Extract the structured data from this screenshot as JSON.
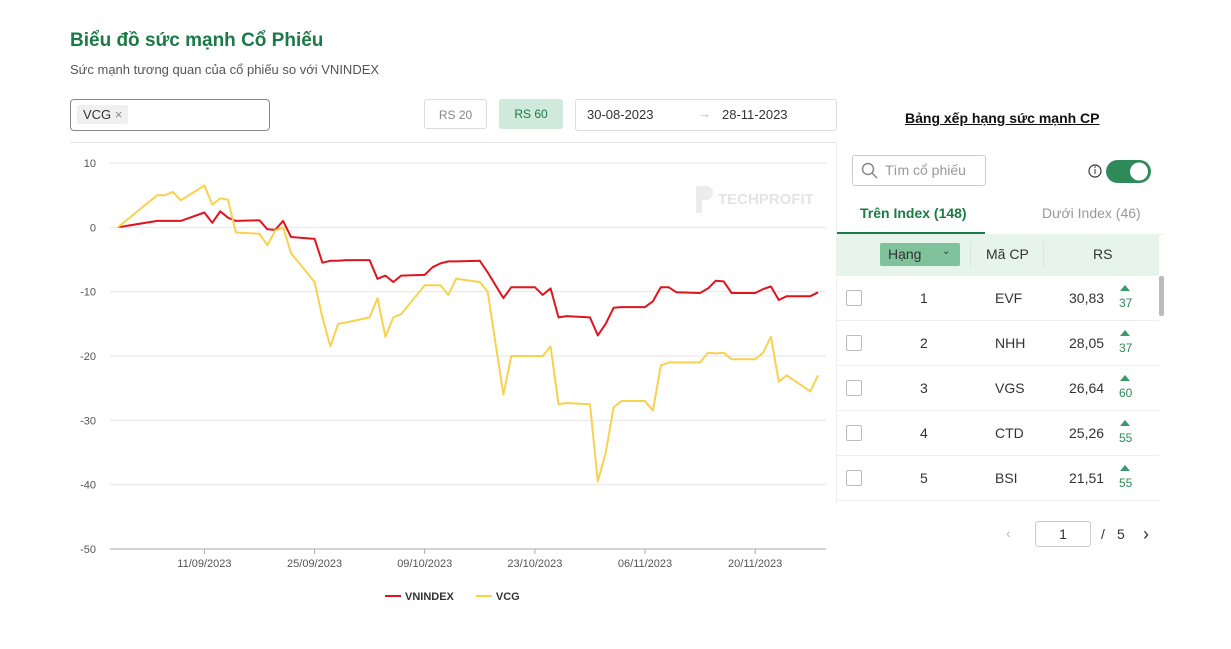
{
  "header": {
    "title": "Biểu đồ sức mạnh Cổ Phiếu",
    "subtitle": "Sức mạnh tương quan của cổ phiếu so với VNINDEX"
  },
  "controls": {
    "tag": "VCG",
    "buttons": [
      "RS 20",
      "RS 60"
    ],
    "date_from": "30-08-2023",
    "date_to": "28-11-2023"
  },
  "chart_data": {
    "type": "line",
    "watermark": "TECHPROFIT",
    "x": [
      "31/08/2023",
      "05/09/2023",
      "06/09/2023",
      "07/09/2023",
      "08/09/2023",
      "11/09/2023",
      "12/09/2023",
      "13/09/2023",
      "14/09/2023",
      "15/09/2023",
      "18/09/2023",
      "19/09/2023",
      "20/09/2023",
      "21/09/2023",
      "22/09/2023",
      "25/09/2023",
      "26/09/2023",
      "27/09/2023",
      "28/09/2023",
      "29/09/2023",
      "02/10/2023",
      "03/10/2023",
      "04/10/2023",
      "05/10/2023",
      "06/10/2023",
      "09/10/2023",
      "10/10/2023",
      "11/10/2023",
      "12/10/2023",
      "13/10/2023",
      "16/10/2023",
      "17/10/2023",
      "18/10/2023",
      "19/10/2023",
      "20/10/2023",
      "23/10/2023",
      "24/10/2023",
      "25/10/2023",
      "26/10/2023",
      "27/10/2023",
      "30/10/2023",
      "31/10/2023",
      "01/11/2023",
      "02/11/2023",
      "03/11/2023",
      "06/11/2023",
      "07/11/2023",
      "08/11/2023",
      "09/11/2023",
      "10/11/2023",
      "13/11/2023",
      "14/11/2023",
      "15/11/2023",
      "16/11/2023",
      "17/11/2023",
      "20/11/2023",
      "21/11/2023",
      "22/11/2023",
      "23/11/2023",
      "24/11/2023",
      "27/11/2023",
      "28/11/2023"
    ],
    "series": [
      {
        "name": "VNINDEX",
        "color": "#e0141e",
        "values": [
          0,
          1,
          1,
          1,
          1,
          2.3,
          0.7,
          2.5,
          1.5,
          1,
          1.1,
          -0.3,
          -0.4,
          1,
          -1.5,
          -1.8,
          -5.5,
          -5.2,
          -5.2,
          -5.1,
          -5.1,
          -8,
          -7.5,
          -8.5,
          -7.5,
          -7.4,
          -6.2,
          -5.6,
          -5.3,
          -5.3,
          -5.2,
          -7,
          -9,
          -11,
          -9.3,
          -9.3,
          -10.5,
          -9.5,
          -14,
          -13.8,
          -14,
          -16.8,
          -15,
          -12.5,
          -12.4,
          -12.4,
          -11.5,
          -9.3,
          -9.3,
          -10.1,
          -10.2,
          -9.5,
          -8.3,
          -8.4,
          -10.2,
          -10.2,
          -9.6,
          -9.2,
          -11.3,
          -10.7,
          -10.7,
          -10.1
        ]
      },
      {
        "name": "VCG",
        "color": "#f7d24f",
        "values": [
          0,
          5,
          5,
          5.5,
          4.2,
          6.5,
          3.5,
          4.5,
          4.3,
          -0.8,
          -1,
          -2.8,
          -0.5,
          0,
          -4,
          -8.5,
          -14,
          -18.5,
          -15,
          -14.8,
          -14,
          -11,
          -17,
          -14,
          -13.5,
          -9,
          -9,
          -9,
          -10.5,
          -8,
          -8.5,
          -10,
          -18,
          -26,
          -20,
          -20,
          -20,
          -18.5,
          -27.5,
          -27.3,
          -27.5,
          -39.5,
          -35,
          -28,
          -27,
          -27,
          -28.5,
          -21.5,
          -21,
          -21,
          -21,
          -19.5,
          -19.6,
          -19.5,
          -20.5,
          -20.5,
          -19.5,
          -17,
          -24,
          -23,
          -25.5,
          -23
        ]
      }
    ],
    "xlim": [
      "30/08/2023",
      "29/11/2023"
    ],
    "xticks": [
      "11/09/2023",
      "25/09/2023",
      "09/10/2023",
      "23/10/2023",
      "06/11/2023",
      "20/11/2023"
    ],
    "ylim": [
      -50,
      10
    ],
    "yticks": [
      10,
      0,
      -10,
      -20,
      -30,
      -40,
      -50
    ],
    "grid": true,
    "legend": "bottom"
  },
  "ranking": {
    "link": "Bảng xếp hạng sức mạnh CP",
    "search_placeholder": "Tìm cổ phiếu",
    "tabs": [
      "Trên Index (148)",
      "Dưới Index (46)"
    ],
    "columns": [
      "Hạng",
      "Mã CP",
      "RS"
    ],
    "rows": [
      [
        "1",
        "EVF",
        "30,83",
        "37"
      ],
      [
        "2",
        "NHH",
        "28,05",
        "37"
      ],
      [
        "3",
        "VGS",
        "26,64",
        "60"
      ],
      [
        "4",
        "CTD",
        "25,26",
        "55"
      ],
      [
        "5",
        "BSI",
        "21,51",
        "55"
      ]
    ],
    "page": "1",
    "pages": "5"
  }
}
